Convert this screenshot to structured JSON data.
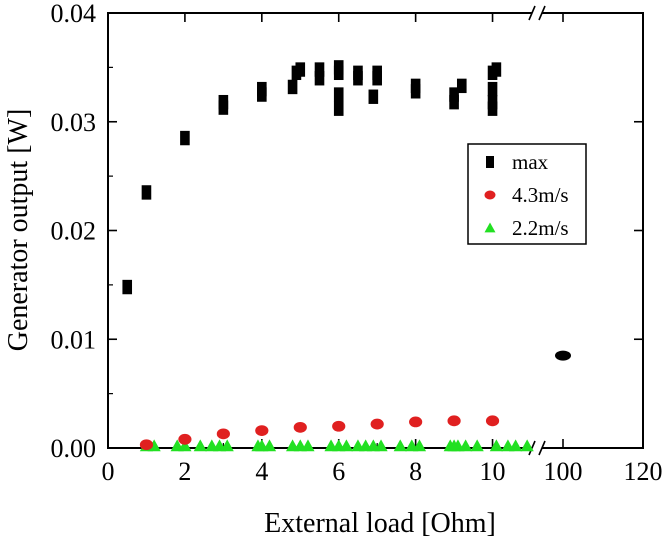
{
  "chart_data": {
    "type": "scatter",
    "title": "",
    "xlabel": "External load [Ohm]",
    "ylabel": "Generator output [W]",
    "x_axis": {
      "broken": true,
      "break_between": [
        11,
        100
      ],
      "segments": [
        {
          "range": [
            0,
            11
          ],
          "ticks": [
            0,
            2,
            4,
            6,
            8,
            10
          ]
        },
        {
          "range": [
            95,
            120
          ],
          "ticks": [
            100,
            120
          ]
        }
      ]
    },
    "y_axis": {
      "range": [
        0,
        0.04
      ],
      "ticks": [
        0.0,
        0.01,
        0.02,
        0.03,
        0.04
      ],
      "tick_labels": [
        "0.00",
        "0.01",
        "0.02",
        "0.03",
        "0.04"
      ]
    },
    "grid": false,
    "legend": {
      "placement": "center-right",
      "entries": [
        "max",
        "4.3m/s",
        "2.2m/s"
      ]
    },
    "series": [
      {
        "name": "max",
        "marker": "square",
        "color": "#000000",
        "points": [
          [
            0.5,
            0.0148
          ],
          [
            1.0,
            0.0235
          ],
          [
            2.0,
            0.0285
          ],
          [
            3.0,
            0.0313
          ],
          [
            3.0,
            0.0318
          ],
          [
            4.0,
            0.0325
          ],
          [
            4.0,
            0.033
          ],
          [
            4.8,
            0.0332
          ],
          [
            4.9,
            0.0345
          ],
          [
            5.0,
            0.0348
          ],
          [
            5.5,
            0.034
          ],
          [
            5.5,
            0.0348
          ],
          [
            6.0,
            0.0312
          ],
          [
            6.0,
            0.0325
          ],
          [
            6.0,
            0.0345
          ],
          [
            6.0,
            0.035
          ],
          [
            6.5,
            0.034
          ],
          [
            6.5,
            0.0345
          ],
          [
            6.9,
            0.0323
          ],
          [
            7.0,
            0.034
          ],
          [
            7.0,
            0.0345
          ],
          [
            8.0,
            0.0328
          ],
          [
            8.0,
            0.0333
          ],
          [
            9.0,
            0.0318
          ],
          [
            9.0,
            0.0325
          ],
          [
            9.2,
            0.0333
          ],
          [
            10.0,
            0.0312
          ],
          [
            10.0,
            0.0318
          ],
          [
            10.0,
            0.033
          ],
          [
            10.0,
            0.0345
          ],
          [
            10.1,
            0.0348
          ],
          [
            100,
            0.0085
          ]
        ]
      },
      {
        "name": "4.3m/s",
        "marker": "circle",
        "color": "#e02020",
        "points": [
          [
            1.0,
            0.0003
          ],
          [
            2.0,
            0.0008
          ],
          [
            3.0,
            0.0013
          ],
          [
            4.0,
            0.0016
          ],
          [
            5.0,
            0.0019
          ],
          [
            6.0,
            0.002
          ],
          [
            7.0,
            0.0022
          ],
          [
            8.0,
            0.0024
          ],
          [
            9.0,
            0.0025
          ],
          [
            10.0,
            0.0025
          ]
        ]
      },
      {
        "name": "2.2m/s",
        "marker": "triangle",
        "color": "#22e022",
        "points": [
          [
            1.0,
            0.0001
          ],
          [
            1.2,
            0.0001
          ],
          [
            1.8,
            0.0001
          ],
          [
            2.0,
            0.0001
          ],
          [
            2.4,
            0.0001
          ],
          [
            2.7,
            0.0001
          ],
          [
            2.9,
            0.0001
          ],
          [
            3.1,
            0.0001
          ],
          [
            3.9,
            0.0001
          ],
          [
            4.0,
            0.0001
          ],
          [
            4.2,
            0.0001
          ],
          [
            4.8,
            0.0001
          ],
          [
            5.0,
            0.0001
          ],
          [
            5.2,
            0.0001
          ],
          [
            5.8,
            0.0001
          ],
          [
            6.0,
            0.0001
          ],
          [
            6.2,
            0.0001
          ],
          [
            6.5,
            0.0001
          ],
          [
            6.7,
            0.0001
          ],
          [
            6.9,
            0.0001
          ],
          [
            7.1,
            0.0001
          ],
          [
            7.6,
            0.0001
          ],
          [
            7.9,
            0.0001
          ],
          [
            8.1,
            0.0001
          ],
          [
            8.9,
            0.0001
          ],
          [
            9.0,
            0.0001
          ],
          [
            9.1,
            0.0001
          ],
          [
            9.3,
            0.0001
          ],
          [
            9.6,
            0.0001
          ],
          [
            10.1,
            0.0001
          ],
          [
            10.4,
            0.0001
          ],
          [
            10.6,
            0.0001
          ],
          [
            10.9,
            0.0001
          ]
        ]
      }
    ]
  }
}
